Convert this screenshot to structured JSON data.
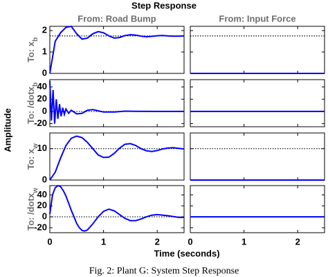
{
  "chart_data": {
    "type": "line",
    "title": "Step Response",
    "column_titles": [
      "From: Road Bump",
      "From: Input Force"
    ],
    "ylabel": "Amplitude",
    "xlabel": "Time (seconds)",
    "xlim": [
      0,
      2.5
    ],
    "xticks": [
      0,
      1,
      2
    ],
    "color": "#0000ff",
    "rows": [
      {
        "label": {
          "text": "To: x",
          "subscript": "b"
        },
        "ylim": [
          0,
          2.2
        ],
        "yticks": [
          0,
          1,
          2
        ],
        "steady_state": 1.75,
        "series": [
          {
            "x": [
              0,
              0.1,
              0.2,
              0.3,
              0.4,
              0.5,
              0.6,
              0.7,
              0.8,
              0.9,
              1.0,
              1.1,
              1.2,
              1.3,
              1.4,
              1.5,
              1.6,
              1.7,
              1.8,
              1.9,
              2.0,
              2.1,
              2.2,
              2.3,
              2.4,
              2.5
            ],
            "values": [
              0,
              1.5,
              1.9,
              2.15,
              2.2,
              1.85,
              1.6,
              1.65,
              1.85,
              1.95,
              1.9,
              1.75,
              1.65,
              1.68,
              1.77,
              1.81,
              1.79,
              1.74,
              1.71,
              1.73,
              1.76,
              1.77,
              1.75,
              1.74,
              1.74,
              1.75
            ]
          },
          {
            "x": [
              0,
              2.5
            ],
            "values": [
              0,
              0
            ]
          }
        ]
      },
      {
        "label": {
          "text": "To: /dotx",
          "subscript": "b"
        },
        "ylim": [
          -25,
          52
        ],
        "yticks": [
          -20,
          0,
          20,
          40
        ],
        "steady_state": 0,
        "series": [
          {
            "x": [
              0,
              0.03,
              0.06,
              0.09,
              0.12,
              0.15,
              0.18,
              0.21,
              0.24,
              0.27,
              0.3,
              0.35,
              0.4,
              0.5,
              0.6,
              0.7,
              0.8,
              0.9,
              1.0,
              1.2,
              1.4,
              1.6,
              2.0,
              2.5
            ],
            "values": [
              50,
              -15,
              35,
              -20,
              20,
              -12,
              12,
              -8,
              6,
              -5,
              4,
              -3,
              2,
              -4,
              -3,
              2,
              3,
              1,
              -1,
              -1,
              0.5,
              0.3,
              0,
              0
            ]
          },
          {
            "x": [
              0,
              2.5
            ],
            "values": [
              0,
              0
            ]
          }
        ]
      },
      {
        "label": {
          "text": "To: x",
          "subscript": "w"
        },
        "ylim": [
          0,
          15
        ],
        "yticks": [
          0,
          10
        ],
        "steady_state": 10,
        "series": [
          {
            "x": [
              0,
              0.1,
              0.2,
              0.3,
              0.4,
              0.5,
              0.6,
              0.7,
              0.8,
              0.9,
              1.0,
              1.1,
              1.2,
              1.3,
              1.4,
              1.5,
              1.6,
              1.7,
              1.8,
              1.9,
              2.0,
              2.1,
              2.2,
              2.3,
              2.4,
              2.5
            ],
            "values": [
              0,
              2.5,
              7,
              11,
              13.3,
              14,
              13.5,
              12,
              10,
              8,
              7.2,
              7.3,
              8.5,
              10.2,
              11.4,
              11.6,
              11,
              10,
              9.3,
              9.1,
              9.4,
              9.9,
              10.2,
              10.3,
              10.1,
              9.9
            ]
          },
          {
            "x": [
              0,
              2.5
            ],
            "values": [
              0,
              0
            ]
          }
        ]
      },
      {
        "label": {
          "text": "To: /dotx",
          "subscript": "w"
        },
        "ylim": [
          -29,
          57
        ],
        "yticks": [
          -20,
          0,
          20,
          40
        ],
        "steady_state": 0,
        "series": [
          {
            "x": [
              0,
              0.05,
              0.1,
              0.15,
              0.2,
              0.25,
              0.3,
              0.35,
              0.4,
              0.45,
              0.5,
              0.55,
              0.6,
              0.65,
              0.7,
              0.8,
              0.9,
              1.0,
              1.1,
              1.2,
              1.3,
              1.4,
              1.5,
              1.6,
              1.7,
              1.8,
              1.9,
              2.0,
              2.2,
              2.4,
              2.5
            ],
            "values": [
              5,
              40,
              53,
              57,
              55,
              48,
              38,
              25,
              12,
              0,
              -12,
              -20,
              -25,
              -26,
              -24,
              -13,
              0,
              10,
              14,
              11,
              4,
              -3,
              -7,
              -7,
              -4,
              0,
              3,
              4,
              2,
              -1,
              -1
            ]
          },
          {
            "x": [
              0,
              2.5
            ],
            "values": [
              0,
              0
            ]
          }
        ]
      }
    ]
  },
  "caption": "Fig. 2: Plant G: System Step Response"
}
